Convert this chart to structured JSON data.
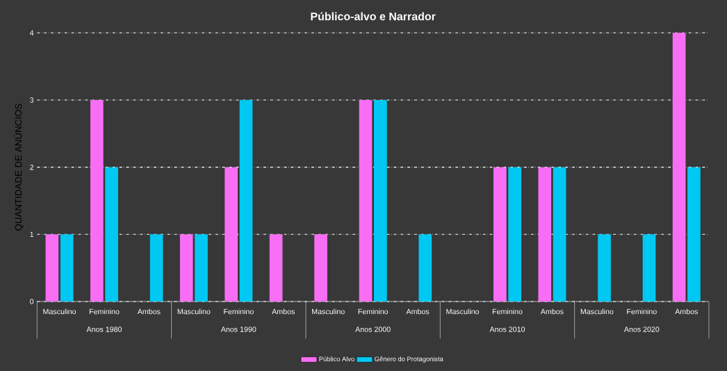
{
  "chart_data": {
    "type": "bar",
    "title": "Público-alvo e Narrador",
    "ylabel": "QUANTIDADE DE ANÚNCIOS",
    "categories": [
      "Masculino",
      "Feminino",
      "Ambos",
      "Masculino",
      "Feminino",
      "Ambos",
      "Masculino",
      "Feminino",
      "Ambos",
      "Masculino",
      "Feminino",
      "Ambos",
      "Masculino",
      "Feminino",
      "Ambos"
    ],
    "series": [
      {
        "name": "Público Alvo",
        "color": "#f76ef5",
        "values": [
          1,
          3,
          0,
          1,
          2,
          1,
          1,
          3,
          0,
          0,
          2,
          2,
          0,
          0,
          4
        ]
      },
      {
        "name": "Gênero do Protagonista",
        "color": "#00c8f2",
        "values": [
          1,
          2,
          1,
          1,
          3,
          0,
          0,
          3,
          1,
          0,
          2,
          2,
          1,
          1,
          2
        ]
      }
    ],
    "annotations": [
      "Anos 1980",
      "Anos 1990",
      "Anos 2000",
      "Anos 2010",
      "Anos 2020"
    ],
    "ylim": [
      0,
      4
    ],
    "yticks": [
      0,
      1,
      2,
      3,
      4
    ],
    "grid": "y",
    "legend": "bottom"
  }
}
